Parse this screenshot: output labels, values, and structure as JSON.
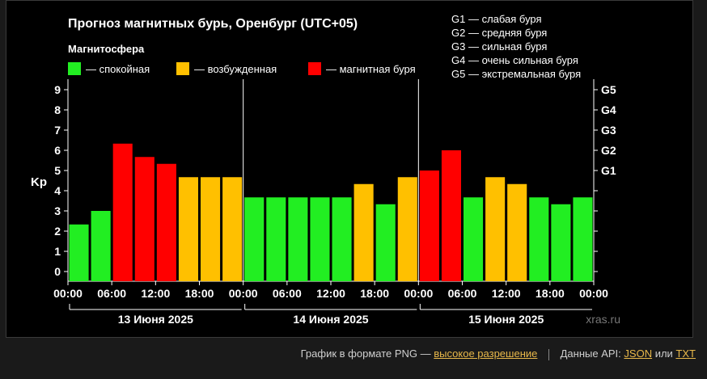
{
  "chart_data": {
    "type": "bar",
    "title": "Прогноз магнитных бурь, Оренбург (UTC+05)",
    "legend_title": "Магнитосфера",
    "legend": [
      {
        "label": "— спокойная",
        "color": "#22ee22"
      },
      {
        "label": "— возбужденная",
        "color": "#ffc000"
      },
      {
        "label": "— магнитная буря",
        "color": "#ff0000"
      }
    ],
    "storm_levels": [
      "G1 — слабая буря",
      "G2 — средняя буря",
      "G3 — сильная буря",
      "G4 — очень сильная буря",
      "G5 — экстремальная буря"
    ],
    "ylabel": "Kp",
    "ylim": [
      0,
      9
    ],
    "yticks": [
      "0",
      "1",
      "2",
      "3",
      "4",
      "5",
      "6",
      "7",
      "8",
      "9"
    ],
    "right_ticks": [
      {
        "label": "G1",
        "value": 5
      },
      {
        "label": "G2",
        "value": 6
      },
      {
        "label": "G3",
        "value": 7
      },
      {
        "label": "G4",
        "value": 8
      },
      {
        "label": "G5",
        "value": 9
      }
    ],
    "xticks": [
      "00:00",
      "06:00",
      "12:00",
      "18:00",
      "00:00",
      "06:00",
      "12:00",
      "18:00",
      "00:00",
      "06:00",
      "12:00",
      "18:00",
      "00:00"
    ],
    "days": [
      "13 Июня 2025",
      "14 Июня 2025",
      "15 Июня 2025"
    ],
    "values": [
      2.33,
      3.0,
      6.33,
      5.67,
      5.33,
      4.67,
      4.67,
      4.67,
      3.67,
      3.67,
      3.67,
      3.67,
      3.67,
      4.33,
      3.33,
      4.67,
      5.0,
      6.0,
      3.67,
      4.67,
      4.33,
      3.67,
      3.33,
      3.67
    ],
    "watermark": "xras.ru",
    "colors": {
      "quiet": "#22ee22",
      "active": "#ffc000",
      "storm": "#ff0000"
    }
  },
  "footer": {
    "png_text": "График в формате PNG —",
    "png_link": "высокое разрешение",
    "api_text": "Данные API:",
    "json_link": "JSON",
    "or_text": "или",
    "txt_link": "TXT"
  }
}
